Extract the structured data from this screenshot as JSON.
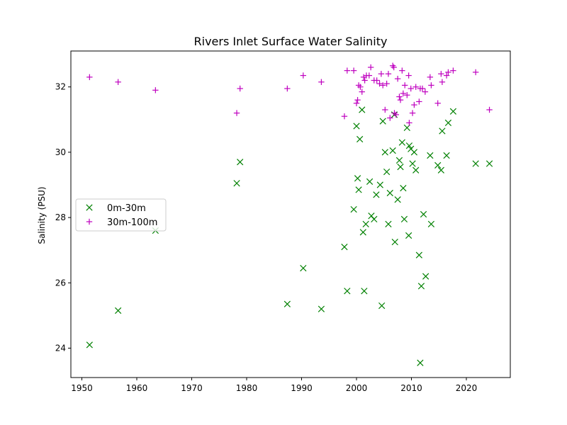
{
  "chart_data": {
    "type": "scatter",
    "title": "Rivers Inlet Surface Water Salinity",
    "xlabel": "",
    "ylabel": "Salinity (PSU)",
    "xlim": [
      1948,
      2028
    ],
    "ylim": [
      23.1,
      33.1
    ],
    "xticks": [
      1950,
      1960,
      1970,
      1980,
      1990,
      2000,
      2010,
      2020
    ],
    "yticks": [
      24,
      26,
      28,
      30,
      32
    ],
    "grid": false,
    "legend_position": "center-left",
    "series": [
      {
        "name": "0m-30m",
        "marker": "x",
        "color": "#008000",
        "points": [
          [
            1951.4,
            24.1
          ],
          [
            1956.6,
            25.15
          ],
          [
            1963.4,
            27.6
          ],
          [
            1978.2,
            29.05
          ],
          [
            1978.8,
            29.7
          ],
          [
            1987.4,
            25.35
          ],
          [
            1990.3,
            26.45
          ],
          [
            1993.6,
            25.2
          ],
          [
            1997.8,
            27.1
          ],
          [
            1998.3,
            25.75
          ],
          [
            1999.5,
            28.25
          ],
          [
            2000.0,
            30.8
          ],
          [
            2000.2,
            29.2
          ],
          [
            2000.4,
            28.85
          ],
          [
            2000.6,
            30.4
          ],
          [
            2001.0,
            31.3
          ],
          [
            2001.2,
            27.55
          ],
          [
            2001.4,
            25.75
          ],
          [
            2001.7,
            27.8
          ],
          [
            2002.4,
            29.1
          ],
          [
            2002.7,
            28.05
          ],
          [
            2003.2,
            27.95
          ],
          [
            2003.6,
            28.7
          ],
          [
            2004.3,
            29.0
          ],
          [
            2004.6,
            25.3
          ],
          [
            2004.8,
            30.95
          ],
          [
            2005.2,
            30.0
          ],
          [
            2005.5,
            29.4
          ],
          [
            2005.8,
            27.8
          ],
          [
            2006.1,
            28.75
          ],
          [
            2006.6,
            30.05
          ],
          [
            2006.9,
            31.15
          ],
          [
            2007.0,
            27.25
          ],
          [
            2007.5,
            28.55
          ],
          [
            2007.8,
            29.75
          ],
          [
            2008.0,
            29.55
          ],
          [
            2008.3,
            30.3
          ],
          [
            2008.5,
            28.9
          ],
          [
            2008.7,
            27.95
          ],
          [
            2009.2,
            30.75
          ],
          [
            2009.5,
            27.45
          ],
          [
            2009.6,
            30.2
          ],
          [
            2009.9,
            30.1
          ],
          [
            2010.2,
            29.65
          ],
          [
            2010.5,
            30.0
          ],
          [
            2010.8,
            29.45
          ],
          [
            2011.4,
            26.85
          ],
          [
            2011.6,
            23.55
          ],
          [
            2011.8,
            25.9
          ],
          [
            2012.2,
            28.1
          ],
          [
            2012.6,
            26.2
          ],
          [
            2013.4,
            29.9
          ],
          [
            2013.6,
            27.8
          ],
          [
            2014.8,
            29.6
          ],
          [
            2015.4,
            29.45
          ],
          [
            2015.6,
            30.65
          ],
          [
            2016.4,
            29.9
          ],
          [
            2016.7,
            30.9
          ],
          [
            2017.6,
            31.25
          ],
          [
            2021.7,
            29.65
          ],
          [
            2024.2,
            29.65
          ]
        ]
      },
      {
        "name": "30m-100m",
        "marker": "+",
        "color": "#bf00bf",
        "points": [
          [
            1951.4,
            32.3
          ],
          [
            1956.6,
            32.15
          ],
          [
            1963.4,
            31.9
          ],
          [
            1978.2,
            31.2
          ],
          [
            1978.8,
            31.95
          ],
          [
            1987.4,
            31.95
          ],
          [
            1990.3,
            32.35
          ],
          [
            1993.6,
            32.15
          ],
          [
            1997.8,
            31.1
          ],
          [
            1998.3,
            32.5
          ],
          [
            1999.5,
            32.5
          ],
          [
            2000.0,
            31.5
          ],
          [
            2000.2,
            31.6
          ],
          [
            2000.4,
            32.05
          ],
          [
            2000.7,
            32.0
          ],
          [
            2001.0,
            31.85
          ],
          [
            2001.3,
            32.3
          ],
          [
            2001.5,
            32.2
          ],
          [
            2001.8,
            32.35
          ],
          [
            2002.3,
            32.35
          ],
          [
            2002.6,
            32.6
          ],
          [
            2003.2,
            32.2
          ],
          [
            2003.7,
            32.2
          ],
          [
            2004.2,
            32.1
          ],
          [
            2004.5,
            32.4
          ],
          [
            2004.8,
            32.05
          ],
          [
            2005.2,
            31.3
          ],
          [
            2005.5,
            32.1
          ],
          [
            2005.8,
            32.4
          ],
          [
            2006.1,
            31.05
          ],
          [
            2006.6,
            32.65
          ],
          [
            2006.8,
            32.6
          ],
          [
            2006.9,
            31.2
          ],
          [
            2007.2,
            31.15
          ],
          [
            2007.5,
            32.25
          ],
          [
            2007.8,
            31.7
          ],
          [
            2008.0,
            31.6
          ],
          [
            2008.3,
            32.5
          ],
          [
            2008.5,
            31.8
          ],
          [
            2008.8,
            32.05
          ],
          [
            2009.2,
            31.75
          ],
          [
            2009.5,
            32.35
          ],
          [
            2009.6,
            30.9
          ],
          [
            2009.9,
            31.95
          ],
          [
            2010.2,
            31.2
          ],
          [
            2010.5,
            31.45
          ],
          [
            2010.8,
            32.0
          ],
          [
            2011.4,
            31.55
          ],
          [
            2011.6,
            31.95
          ],
          [
            2012.0,
            31.95
          ],
          [
            2012.5,
            31.85
          ],
          [
            2013.4,
            32.3
          ],
          [
            2013.6,
            32.05
          ],
          [
            2014.8,
            31.5
          ],
          [
            2015.4,
            32.4
          ],
          [
            2015.6,
            32.15
          ],
          [
            2016.4,
            32.35
          ],
          [
            2016.7,
            32.45
          ],
          [
            2017.6,
            32.5
          ],
          [
            2021.7,
            32.45
          ],
          [
            2024.2,
            31.3
          ]
        ]
      }
    ]
  }
}
